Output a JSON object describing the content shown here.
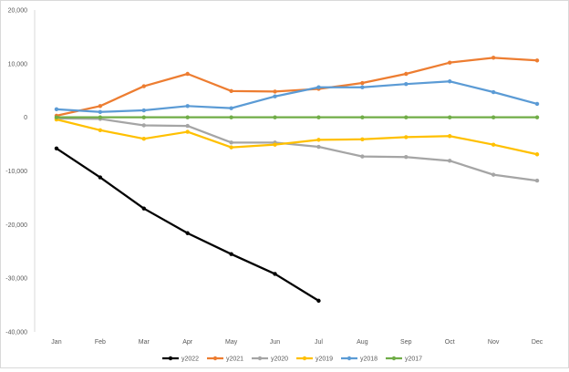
{
  "chart_data": {
    "type": "line",
    "categories": [
      "Jan",
      "Feb",
      "Mar",
      "Apr",
      "May",
      "Jun",
      "Jul",
      "Aug",
      "Sep",
      "Oct",
      "Nov",
      "Dec"
    ],
    "ylim": [
      -40000,
      20000
    ],
    "yticks": [
      20000,
      10000,
      0,
      -10000,
      -20000,
      -30000,
      -40000
    ],
    "ytick_labels": [
      "20,000",
      "10,000",
      "0",
      "-10,000",
      "-20,000",
      "-30,000",
      "-40,000"
    ],
    "title": "",
    "xlabel": "",
    "ylabel": "",
    "grid": false,
    "legend_position": "bottom",
    "series": [
      {
        "name": "y2022",
        "color": "#000000",
        "values": [
          -5800,
          -11200,
          -17000,
          -21600,
          -25500,
          -29200,
          -34200,
          null,
          null,
          null,
          null,
          null
        ]
      },
      {
        "name": "y2021",
        "color": "#ED7D31",
        "values": [
          300,
          2100,
          5800,
          8100,
          4900,
          4800,
          5300,
          6400,
          8100,
          10200,
          11100,
          10600
        ]
      },
      {
        "name": "y2020",
        "color": "#A5A5A5",
        "values": [
          -200,
          -300,
          -1500,
          -1600,
          -4700,
          -4700,
          -5500,
          -7300,
          -7400,
          -8100,
          -10700,
          -11800
        ]
      },
      {
        "name": "y2019",
        "color": "#FFC000",
        "values": [
          -400,
          -2400,
          -4000,
          -2700,
          -5600,
          -5100,
          -4200,
          -4100,
          -3700,
          -3500,
          -5100,
          -6900
        ]
      },
      {
        "name": "y2018",
        "color": "#5B9BD5",
        "values": [
          1500,
          1000,
          1300,
          2100,
          1700,
          3900,
          5600,
          5600,
          6200,
          6700,
          4700,
          2500
        ]
      },
      {
        "name": "y2017",
        "color": "#70AD47",
        "values": [
          0,
          0,
          0,
          0,
          0,
          0,
          0,
          0,
          0,
          0,
          0,
          0
        ]
      }
    ]
  }
}
